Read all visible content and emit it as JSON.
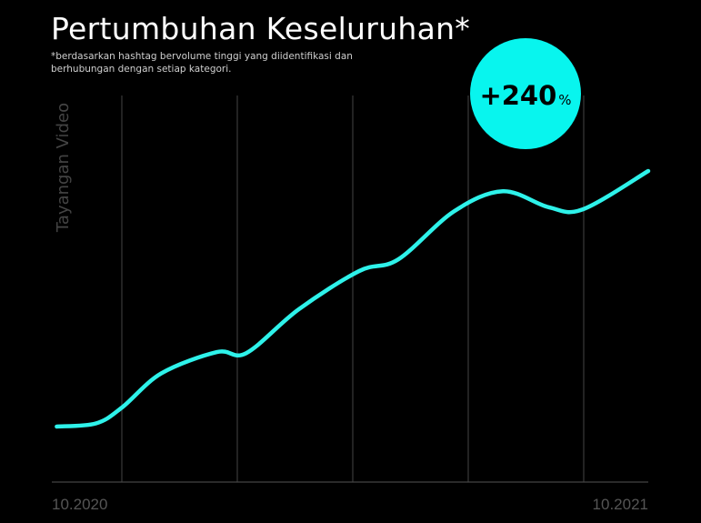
{
  "chart_data": {
    "type": "line",
    "title": "Pertumbuhan Keseluruhan*",
    "subtitle": "*berdasarkan hashtag bervolume tinggi yang diidentifikasi dan berhubungan dengan setiap kategori.",
    "xlabel": "",
    "ylabel": "Tayangan Video",
    "x_tick_labels": [
      "10.2020",
      "10.2021"
    ],
    "xlim": [
      "2020-10-01",
      "2021-10-01"
    ],
    "grid": {
      "vertical": true,
      "horizontal": false
    },
    "y_axis_values_shown": false,
    "line_color": "#2ef2ea",
    "badge": {
      "value": "+240",
      "unit": "%",
      "color": "#08f5ee"
    },
    "series": [
      {
        "x": [
          "2020-10-04",
          "2020-10-28",
          "2020-11-13",
          "2020-12-07",
          "2021-01-10",
          "2021-01-28",
          "2021-03-01",
          "2021-04-07",
          "2021-05-01",
          "2021-06-04",
          "2021-07-04",
          "2021-08-01",
          "2021-08-22",
          "2021-10-01"
        ],
        "y": [
          100,
          103,
          118,
          150,
          170,
          169,
          210,
          246,
          257,
          302,
          321,
          306,
          304,
          340
        ]
      }
    ]
  }
}
